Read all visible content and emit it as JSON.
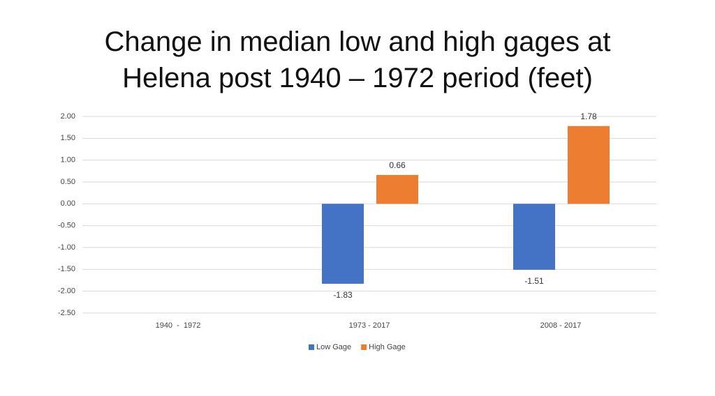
{
  "chart_data": {
    "type": "bar",
    "title": "Change in median low and high gages at\nHelena post 1940 – 1972 period (feet)",
    "categories": [
      "1940  -  1972",
      "1973 - 2017",
      "2008 - 2017"
    ],
    "series": [
      {
        "name": "Low Gage",
        "color": "#4472c4",
        "values": [
          null,
          -1.83,
          -1.51
        ]
      },
      {
        "name": "High Gage",
        "color": "#ed7d31",
        "values": [
          null,
          0.66,
          1.78
        ]
      }
    ],
    "ylim": [
      -2.5,
      2
    ],
    "yticks": [
      {
        "value": -2.5,
        "label": "-2.50"
      },
      {
        "value": -2,
        "label": "-2.00"
      },
      {
        "value": -1.5,
        "label": "-1.50"
      },
      {
        "value": -1,
        "label": "-1.00"
      },
      {
        "value": -0.5,
        "label": "-0.50"
      },
      {
        "value": 0,
        "label": "0.00"
      },
      {
        "value": 0.5,
        "label": "0.50"
      },
      {
        "value": 1,
        "label": "1.00"
      },
      {
        "value": 1.5,
        "label": "1.50"
      },
      {
        "value": 2,
        "label": "2.00"
      }
    ],
    "grid": true,
    "legend": "bottom"
  }
}
